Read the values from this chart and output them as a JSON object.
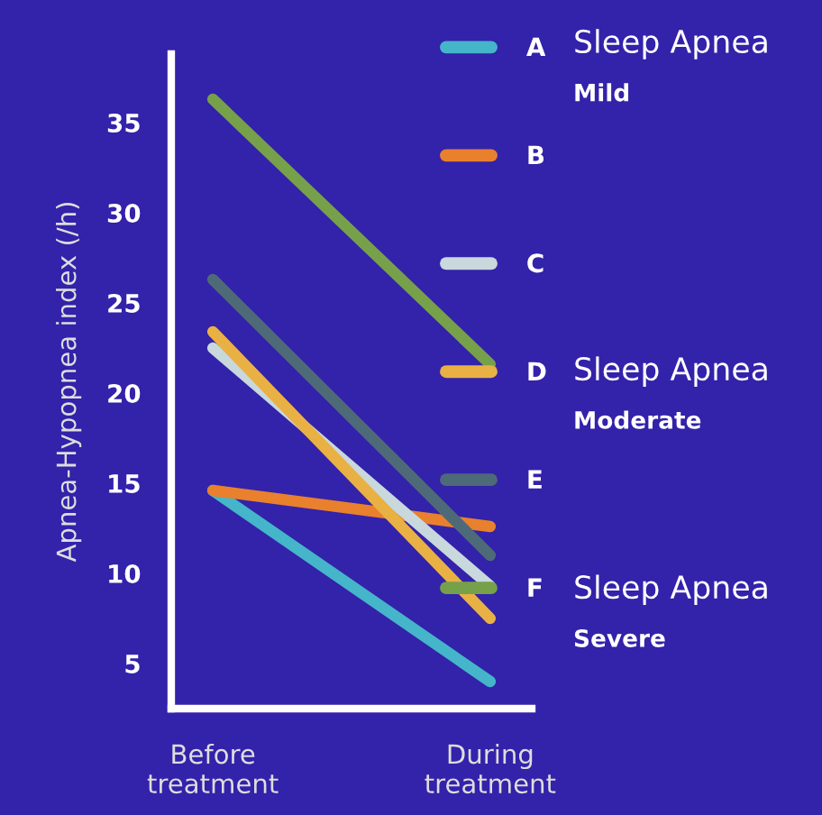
{
  "chart_data": {
    "type": "line",
    "ylabel": "Apnea-Hypopnea index (/h)",
    "categories": [
      "Before\ntreatment",
      "During\ntreatment"
    ],
    "series": [
      {
        "name": "A",
        "color": "#45b5c9",
        "values": [
          14.6,
          4.0
        ]
      },
      {
        "name": "B",
        "color": "#e8802e",
        "values": [
          14.6,
          12.6
        ]
      },
      {
        "name": "C",
        "color": "#c8d8dc",
        "values": [
          22.5,
          9.3
        ]
      },
      {
        "name": "D",
        "color": "#e9b143",
        "values": [
          23.4,
          7.5
        ]
      },
      {
        "name": "E",
        "color": "#4e6a78",
        "values": [
          26.3,
          11.0
        ]
      },
      {
        "name": "F",
        "color": "#76a04a",
        "values": [
          36.3,
          21.6
        ]
      }
    ],
    "ylim": [
      2.5,
      38.8
    ],
    "yticks": [
      5,
      10,
      15,
      20,
      25,
      30,
      35
    ],
    "grid": false,
    "legend": "right",
    "marker": "none",
    "line_style": "solid",
    "annotations": [
      "Sleep Apnea",
      "Mild",
      "Sleep Apnea",
      "Moderate",
      "Sleep Apnea",
      "Severe"
    ]
  }
}
